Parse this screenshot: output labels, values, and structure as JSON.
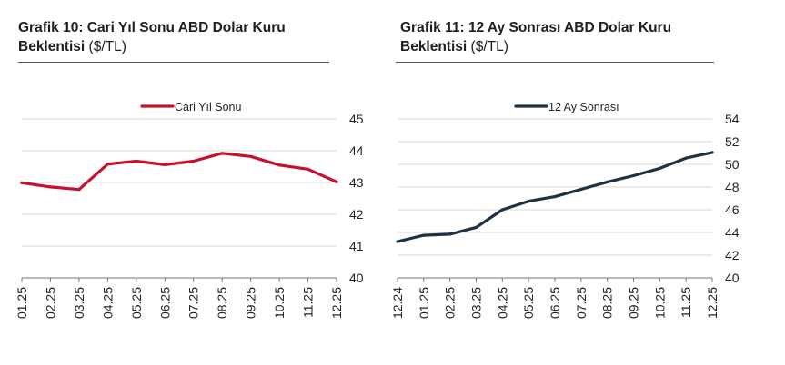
{
  "panels": [
    {
      "title": "Grafik 10: Cari Yıl Sonu ABD Dolar Kuru",
      "title_line2": "Beklentisi",
      "unit": " ($/TL)"
    },
    {
      "title": "Grafik 11: 12 Ay Sonrası ABD Dolar Kuru",
      "title_line2": "Beklentisi",
      "unit": " ($/TL)"
    }
  ],
  "chart_data": [
    {
      "type": "line",
      "categories": [
        "01.25",
        "02.25",
        "03.25",
        "04.25",
        "05.25",
        "06.25",
        "07.25",
        "08.25",
        "09.25",
        "10.25",
        "11.25",
        "12.25"
      ],
      "series": [
        {
          "name": "Cari Yıl Sonu",
          "color": "#c8102e",
          "values": [
            42.99,
            42.86,
            42.78,
            43.58,
            43.67,
            43.56,
            43.67,
            43.92,
            43.82,
            43.55,
            43.42,
            43.02
          ]
        }
      ],
      "ylim": [
        40,
        45
      ],
      "yticks": [
        40,
        41,
        42,
        43,
        44,
        45
      ],
      "y_axis": "right",
      "grid": true,
      "legend": "top"
    },
    {
      "type": "line",
      "categories": [
        "12.24",
        "01.25",
        "02.25",
        "03.25",
        "04.25",
        "05.25",
        "06.25",
        "07.25",
        "08.25",
        "09.25",
        "10.25",
        "11.25",
        "12.25"
      ],
      "series": [
        {
          "name": "12 Ay Sonrası",
          "color": "#1e3246",
          "values": [
            43.2,
            43.75,
            43.85,
            44.45,
            46.0,
            46.75,
            47.15,
            47.8,
            48.45,
            49.0,
            49.65,
            50.55,
            51.05
          ]
        }
      ],
      "ylim": [
        40,
        54
      ],
      "yticks": [
        40,
        42,
        44,
        46,
        48,
        50,
        52,
        54
      ],
      "y_axis": "right",
      "grid": true,
      "legend": "top"
    }
  ]
}
